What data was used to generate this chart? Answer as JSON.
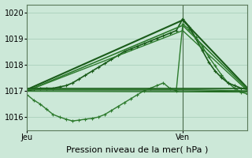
{
  "background_color": "#cce8d8",
  "grid_color": "#aacfbb",
  "x_tick_labels": [
    "Jeu",
    "Ven"
  ],
  "x_tick_positions": [
    0,
    24
  ],
  "ylabel": "Pression niveau de la mer( hPa )",
  "ylim": [
    1015.5,
    1020.3
  ],
  "xlim": [
    0,
    34
  ],
  "yticks": [
    1016,
    1017,
    1018,
    1019,
    1020
  ],
  "label_fontsize": 8,
  "tick_fontsize": 7,
  "vertical_line_x": 24,
  "series": [
    {
      "x": [
        0,
        1,
        2,
        3,
        4,
        5,
        6,
        7,
        8,
        9,
        10,
        11,
        12,
        13,
        14,
        15,
        16,
        17,
        18,
        19,
        20,
        21,
        22,
        23,
        24,
        25,
        26,
        27,
        28,
        29,
        30,
        31,
        32,
        33,
        34
      ],
      "y": [
        1016.85,
        1016.65,
        1016.5,
        1016.3,
        1016.1,
        1016.0,
        1015.92,
        1015.85,
        1015.88,
        1015.92,
        1015.95,
        1016.0,
        1016.1,
        1016.25,
        1016.4,
        1016.55,
        1016.7,
        1016.85,
        1017.0,
        1017.1,
        1017.2,
        1017.3,
        1017.1,
        1017.0,
        1019.55,
        1019.35,
        1019.05,
        1018.7,
        1018.3,
        1017.95,
        1017.6,
        1017.3,
        1017.1,
        1016.95,
        1016.88
      ],
      "color": "#2d7a2d",
      "lw": 1.0,
      "marker": "+"
    },
    {
      "x": [
        0,
        1,
        2,
        3,
        4,
        5,
        6,
        7,
        8,
        9,
        10,
        11,
        12,
        13,
        14,
        15,
        16,
        17,
        18,
        19,
        20,
        21,
        22,
        23,
        24,
        25,
        26,
        27,
        28,
        29,
        30,
        31,
        32,
        33,
        34
      ],
      "y": [
        1017.0,
        1017.05,
        1017.1,
        1017.1,
        1017.1,
        1017.15,
        1017.2,
        1017.3,
        1017.45,
        1017.6,
        1017.75,
        1017.9,
        1018.05,
        1018.2,
        1018.35,
        1018.5,
        1018.6,
        1018.7,
        1018.8,
        1018.9,
        1019.0,
        1019.1,
        1019.2,
        1019.3,
        1019.75,
        1019.45,
        1019.0,
        1018.55,
        1018.1,
        1017.75,
        1017.5,
        1017.3,
        1017.2,
        1017.1,
        1017.05
      ],
      "color": "#1a5c1a",
      "lw": 1.2,
      "marker": "+"
    },
    {
      "x": [
        0,
        24,
        34
      ],
      "y": [
        1017.05,
        1019.7,
        1017.1
      ],
      "color": "#1a5c1a",
      "lw": 1.5,
      "marker": null
    },
    {
      "x": [
        0,
        24,
        34
      ],
      "y": [
        1017.0,
        1019.5,
        1017.05
      ],
      "color": "#2d7a2d",
      "lw": 1.2,
      "marker": null
    },
    {
      "x": [
        0,
        24,
        34
      ],
      "y": [
        1017.0,
        1019.3,
        1017.0
      ],
      "color": "#2d7a2d",
      "lw": 1.0,
      "marker": null
    },
    {
      "x": [
        0,
        24,
        34
      ],
      "y": [
        1017.1,
        1017.1,
        1017.1
      ],
      "color": "#1a5c1a",
      "lw": 1.2,
      "marker": null
    },
    {
      "x": [
        0,
        24,
        34
      ],
      "y": [
        1017.05,
        1017.05,
        1017.0
      ],
      "color": "#2d7a2d",
      "lw": 1.0,
      "marker": null
    },
    {
      "x": [
        0,
        24,
        34
      ],
      "y": [
        1017.0,
        1017.0,
        1016.97
      ],
      "color": "#1a5c1a",
      "lw": 0.9,
      "marker": null
    },
    {
      "x": [
        0,
        34
      ],
      "y": [
        1016.98,
        1016.95
      ],
      "color": "#2d7a2d",
      "lw": 0.8,
      "marker": null
    }
  ]
}
